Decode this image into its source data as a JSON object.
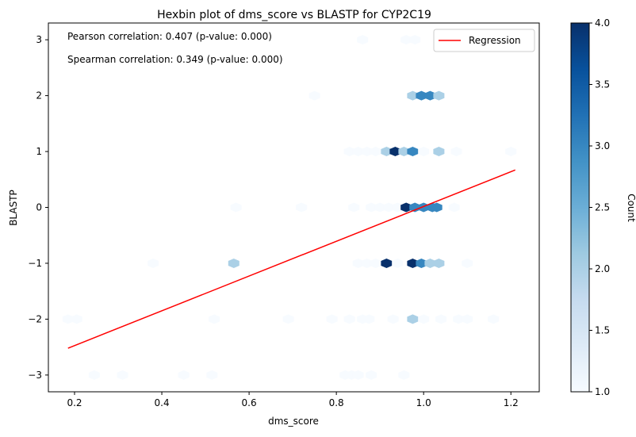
{
  "chart_data": {
    "type": "hexbin",
    "title": "Hexbin plot of dms_score vs BLASTP for CYP2C19",
    "xlabel": "dms_score",
    "ylabel": "BLASTP",
    "xlim": [
      0.14,
      1.265
    ],
    "ylim": [
      -3.3,
      3.3
    ],
    "x_ticks": [
      0.2,
      0.4,
      0.6,
      0.8,
      1.0,
      1.2
    ],
    "x_tick_labels": [
      "0.2",
      "0.4",
      "0.6",
      "0.8",
      "1.0",
      "1.2"
    ],
    "y_ticks": [
      3,
      2,
      1,
      0,
      -1,
      -2,
      -3
    ],
    "y_tick_labels": [
      "3",
      "2",
      "1",
      "0",
      "−1",
      "−2",
      "−3"
    ],
    "annotations": [
      "Pearson correlation: 0.407 (p-value: 0.000)",
      "Spearman correlation: 0.349 (p-value: 0.000)"
    ],
    "legend": {
      "position": "top-right",
      "entries": [
        {
          "name": "Regression",
          "color": "#ff0000"
        }
      ]
    },
    "regression": {
      "x": [
        0.185,
        1.21
      ],
      "y": [
        -2.52,
        0.67
      ],
      "color": "#ff0000"
    },
    "colorbar": {
      "label": "Count",
      "min": 1.0,
      "max": 4.0,
      "ticks": [
        1.0,
        1.5,
        2.0,
        2.5,
        3.0,
        3.5,
        4.0
      ],
      "tick_labels": [
        "1.0",
        "1.5",
        "2.0",
        "2.5",
        "3.0",
        "3.5",
        "4.0"
      ],
      "colormap": "Blues"
    },
    "grid": false,
    "bins": [
      {
        "x": 0.86,
        "y": 3,
        "count": 1
      },
      {
        "x": 0.96,
        "y": 3,
        "count": 1
      },
      {
        "x": 0.98,
        "y": 3,
        "count": 1
      },
      {
        "x": 0.75,
        "y": 2,
        "count": 1
      },
      {
        "x": 0.975,
        "y": 2,
        "count": 2
      },
      {
        "x": 0.995,
        "y": 2,
        "count": 3
      },
      {
        "x": 1.015,
        "y": 2,
        "count": 3
      },
      {
        "x": 1.035,
        "y": 2,
        "count": 2
      },
      {
        "x": 0.83,
        "y": 1,
        "count": 1
      },
      {
        "x": 0.85,
        "y": 1,
        "count": 1
      },
      {
        "x": 0.87,
        "y": 1,
        "count": 1
      },
      {
        "x": 0.89,
        "y": 1,
        "count": 1
      },
      {
        "x": 0.915,
        "y": 1,
        "count": 2
      },
      {
        "x": 0.935,
        "y": 1,
        "count": 4
      },
      {
        "x": 0.955,
        "y": 1,
        "count": 2
      },
      {
        "x": 0.975,
        "y": 1,
        "count": 3
      },
      {
        "x": 1.0,
        "y": 1,
        "count": 1
      },
      {
        "x": 1.035,
        "y": 1,
        "count": 2
      },
      {
        "x": 1.075,
        "y": 1,
        "count": 1
      },
      {
        "x": 1.2,
        "y": 1,
        "count": 1
      },
      {
        "x": 0.57,
        "y": 0,
        "count": 1
      },
      {
        "x": 0.72,
        "y": 0,
        "count": 1
      },
      {
        "x": 0.84,
        "y": 0,
        "count": 1
      },
      {
        "x": 0.88,
        "y": 0,
        "count": 1
      },
      {
        "x": 0.9,
        "y": 0,
        "count": 1
      },
      {
        "x": 0.92,
        "y": 0,
        "count": 1
      },
      {
        "x": 0.94,
        "y": 0,
        "count": 1
      },
      {
        "x": 0.96,
        "y": 0,
        "count": 4
      },
      {
        "x": 0.98,
        "y": 0,
        "count": 3
      },
      {
        "x": 1.0,
        "y": 0,
        "count": 3
      },
      {
        "x": 1.02,
        "y": 0,
        "count": 3
      },
      {
        "x": 1.03,
        "y": 0,
        "count": 3
      },
      {
        "x": 1.07,
        "y": 0,
        "count": 1
      },
      {
        "x": 0.38,
        "y": -1,
        "count": 1
      },
      {
        "x": 0.565,
        "y": -1,
        "count": 2
      },
      {
        "x": 0.85,
        "y": -1,
        "count": 1
      },
      {
        "x": 0.87,
        "y": -1,
        "count": 1
      },
      {
        "x": 0.89,
        "y": -1,
        "count": 1
      },
      {
        "x": 0.915,
        "y": -1,
        "count": 4
      },
      {
        "x": 0.94,
        "y": -1,
        "count": 1
      },
      {
        "x": 0.975,
        "y": -1,
        "count": 4
      },
      {
        "x": 0.995,
        "y": -1,
        "count": 3
      },
      {
        "x": 1.015,
        "y": -1,
        "count": 2
      },
      {
        "x": 1.035,
        "y": -1,
        "count": 2
      },
      {
        "x": 1.1,
        "y": -1,
        "count": 1
      },
      {
        "x": 0.185,
        "y": -2,
        "count": 1
      },
      {
        "x": 0.205,
        "y": -2,
        "count": 1
      },
      {
        "x": 0.52,
        "y": -2,
        "count": 1
      },
      {
        "x": 0.69,
        "y": -2,
        "count": 1
      },
      {
        "x": 0.79,
        "y": -2,
        "count": 1
      },
      {
        "x": 0.83,
        "y": -2,
        "count": 1
      },
      {
        "x": 0.86,
        "y": -2,
        "count": 1
      },
      {
        "x": 0.875,
        "y": -2,
        "count": 1
      },
      {
        "x": 0.93,
        "y": -2,
        "count": 1
      },
      {
        "x": 0.975,
        "y": -2,
        "count": 2
      },
      {
        "x": 1.0,
        "y": -2,
        "count": 1
      },
      {
        "x": 1.04,
        "y": -2,
        "count": 1
      },
      {
        "x": 1.08,
        "y": -2,
        "count": 1
      },
      {
        "x": 1.1,
        "y": -2,
        "count": 1
      },
      {
        "x": 1.16,
        "y": -2,
        "count": 1
      },
      {
        "x": 0.245,
        "y": -3,
        "count": 1
      },
      {
        "x": 0.31,
        "y": -3,
        "count": 1
      },
      {
        "x": 0.45,
        "y": -3,
        "count": 1
      },
      {
        "x": 0.515,
        "y": -3,
        "count": 1
      },
      {
        "x": 0.82,
        "y": -3,
        "count": 1
      },
      {
        "x": 0.835,
        "y": -3,
        "count": 1
      },
      {
        "x": 0.85,
        "y": -3,
        "count": 1
      },
      {
        "x": 0.88,
        "y": -3,
        "count": 1
      },
      {
        "x": 0.955,
        "y": -3,
        "count": 1
      }
    ]
  }
}
